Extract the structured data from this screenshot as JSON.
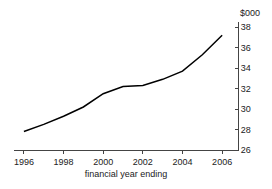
{
  "chart_data": {
    "type": "line",
    "x": [
      1996,
      1997,
      1998,
      1999,
      2000,
      2001,
      2002,
      2003,
      2004,
      2005,
      2006
    ],
    "values": [
      27.8,
      28.5,
      29.3,
      30.2,
      31.5,
      32.2,
      32.3,
      32.9,
      33.7,
      35.3,
      37.2
    ],
    "xlabel": "financial year ending",
    "ylabel": "$000",
    "xlim": [
      1995.5,
      2006.8
    ],
    "ylim": [
      26,
      38.5
    ],
    "xticks": [
      1996,
      1998,
      2000,
      2002,
      2004,
      2006
    ],
    "yticks": [
      26,
      28,
      30,
      32,
      34,
      36,
      38
    ],
    "color": "#000000",
    "grid": false
  }
}
